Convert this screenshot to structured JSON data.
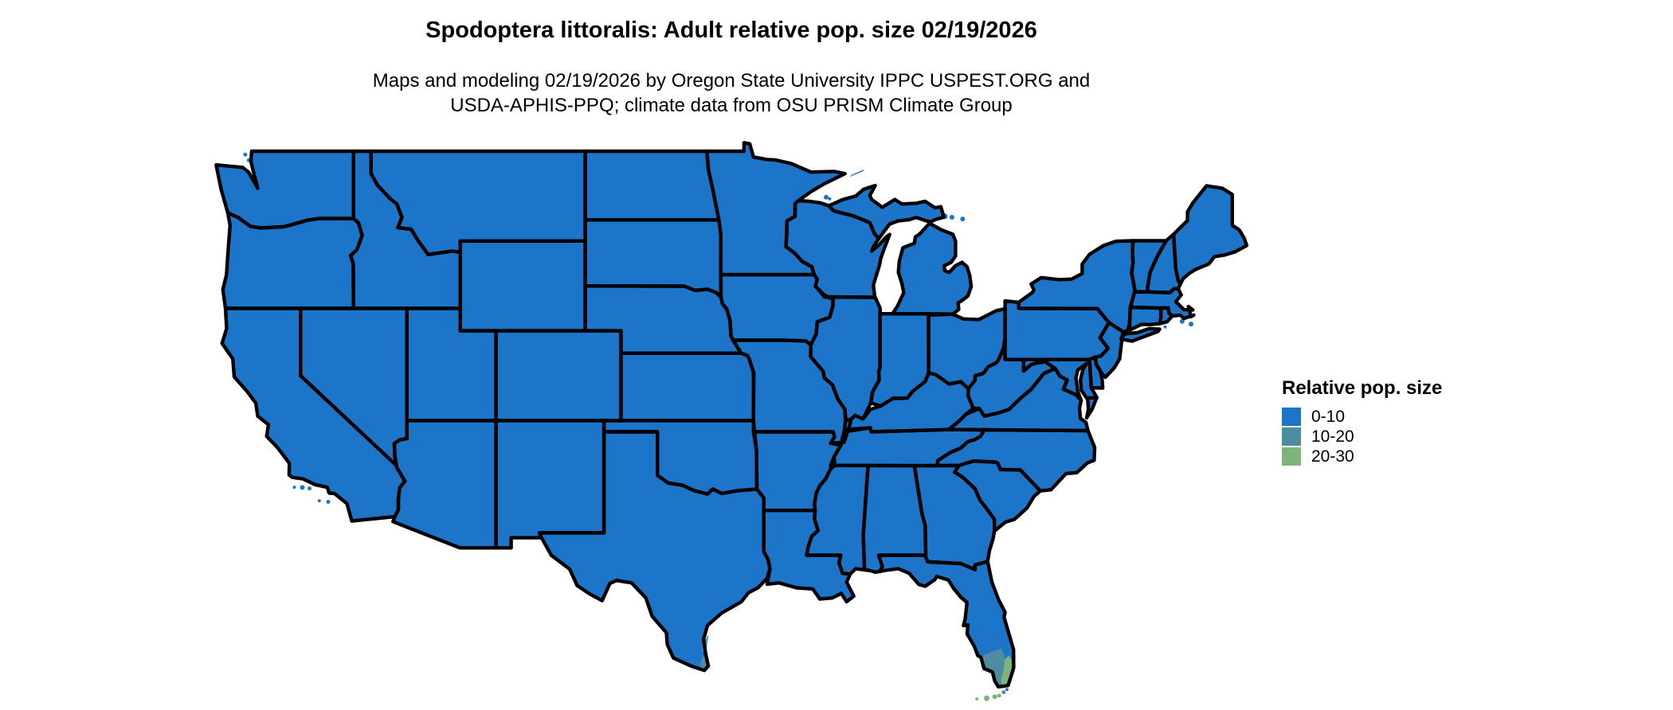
{
  "title": "Spodoptera littoralis: Adult relative pop. size 02/19/2026",
  "subtitle_line1": "Maps and modeling 02/19/2026 by Oregon State University IPPC USPEST.ORG and",
  "subtitle_line2": "USDA-APHIS-PPQ; climate data from OSU PRISM Climate Group",
  "legend": {
    "title": "Relative pop. size",
    "items": [
      {
        "label": "0-10",
        "color": "#1C75C8"
      },
      {
        "label": "10-20",
        "color": "#4E8CA2"
      },
      {
        "label": "20-30",
        "color": "#7CB47A"
      }
    ]
  },
  "map": {
    "region": "Contiguous United States",
    "land_color": "#1C75C8",
    "border_color": "#000000",
    "water_color": "#ffffff"
  }
}
